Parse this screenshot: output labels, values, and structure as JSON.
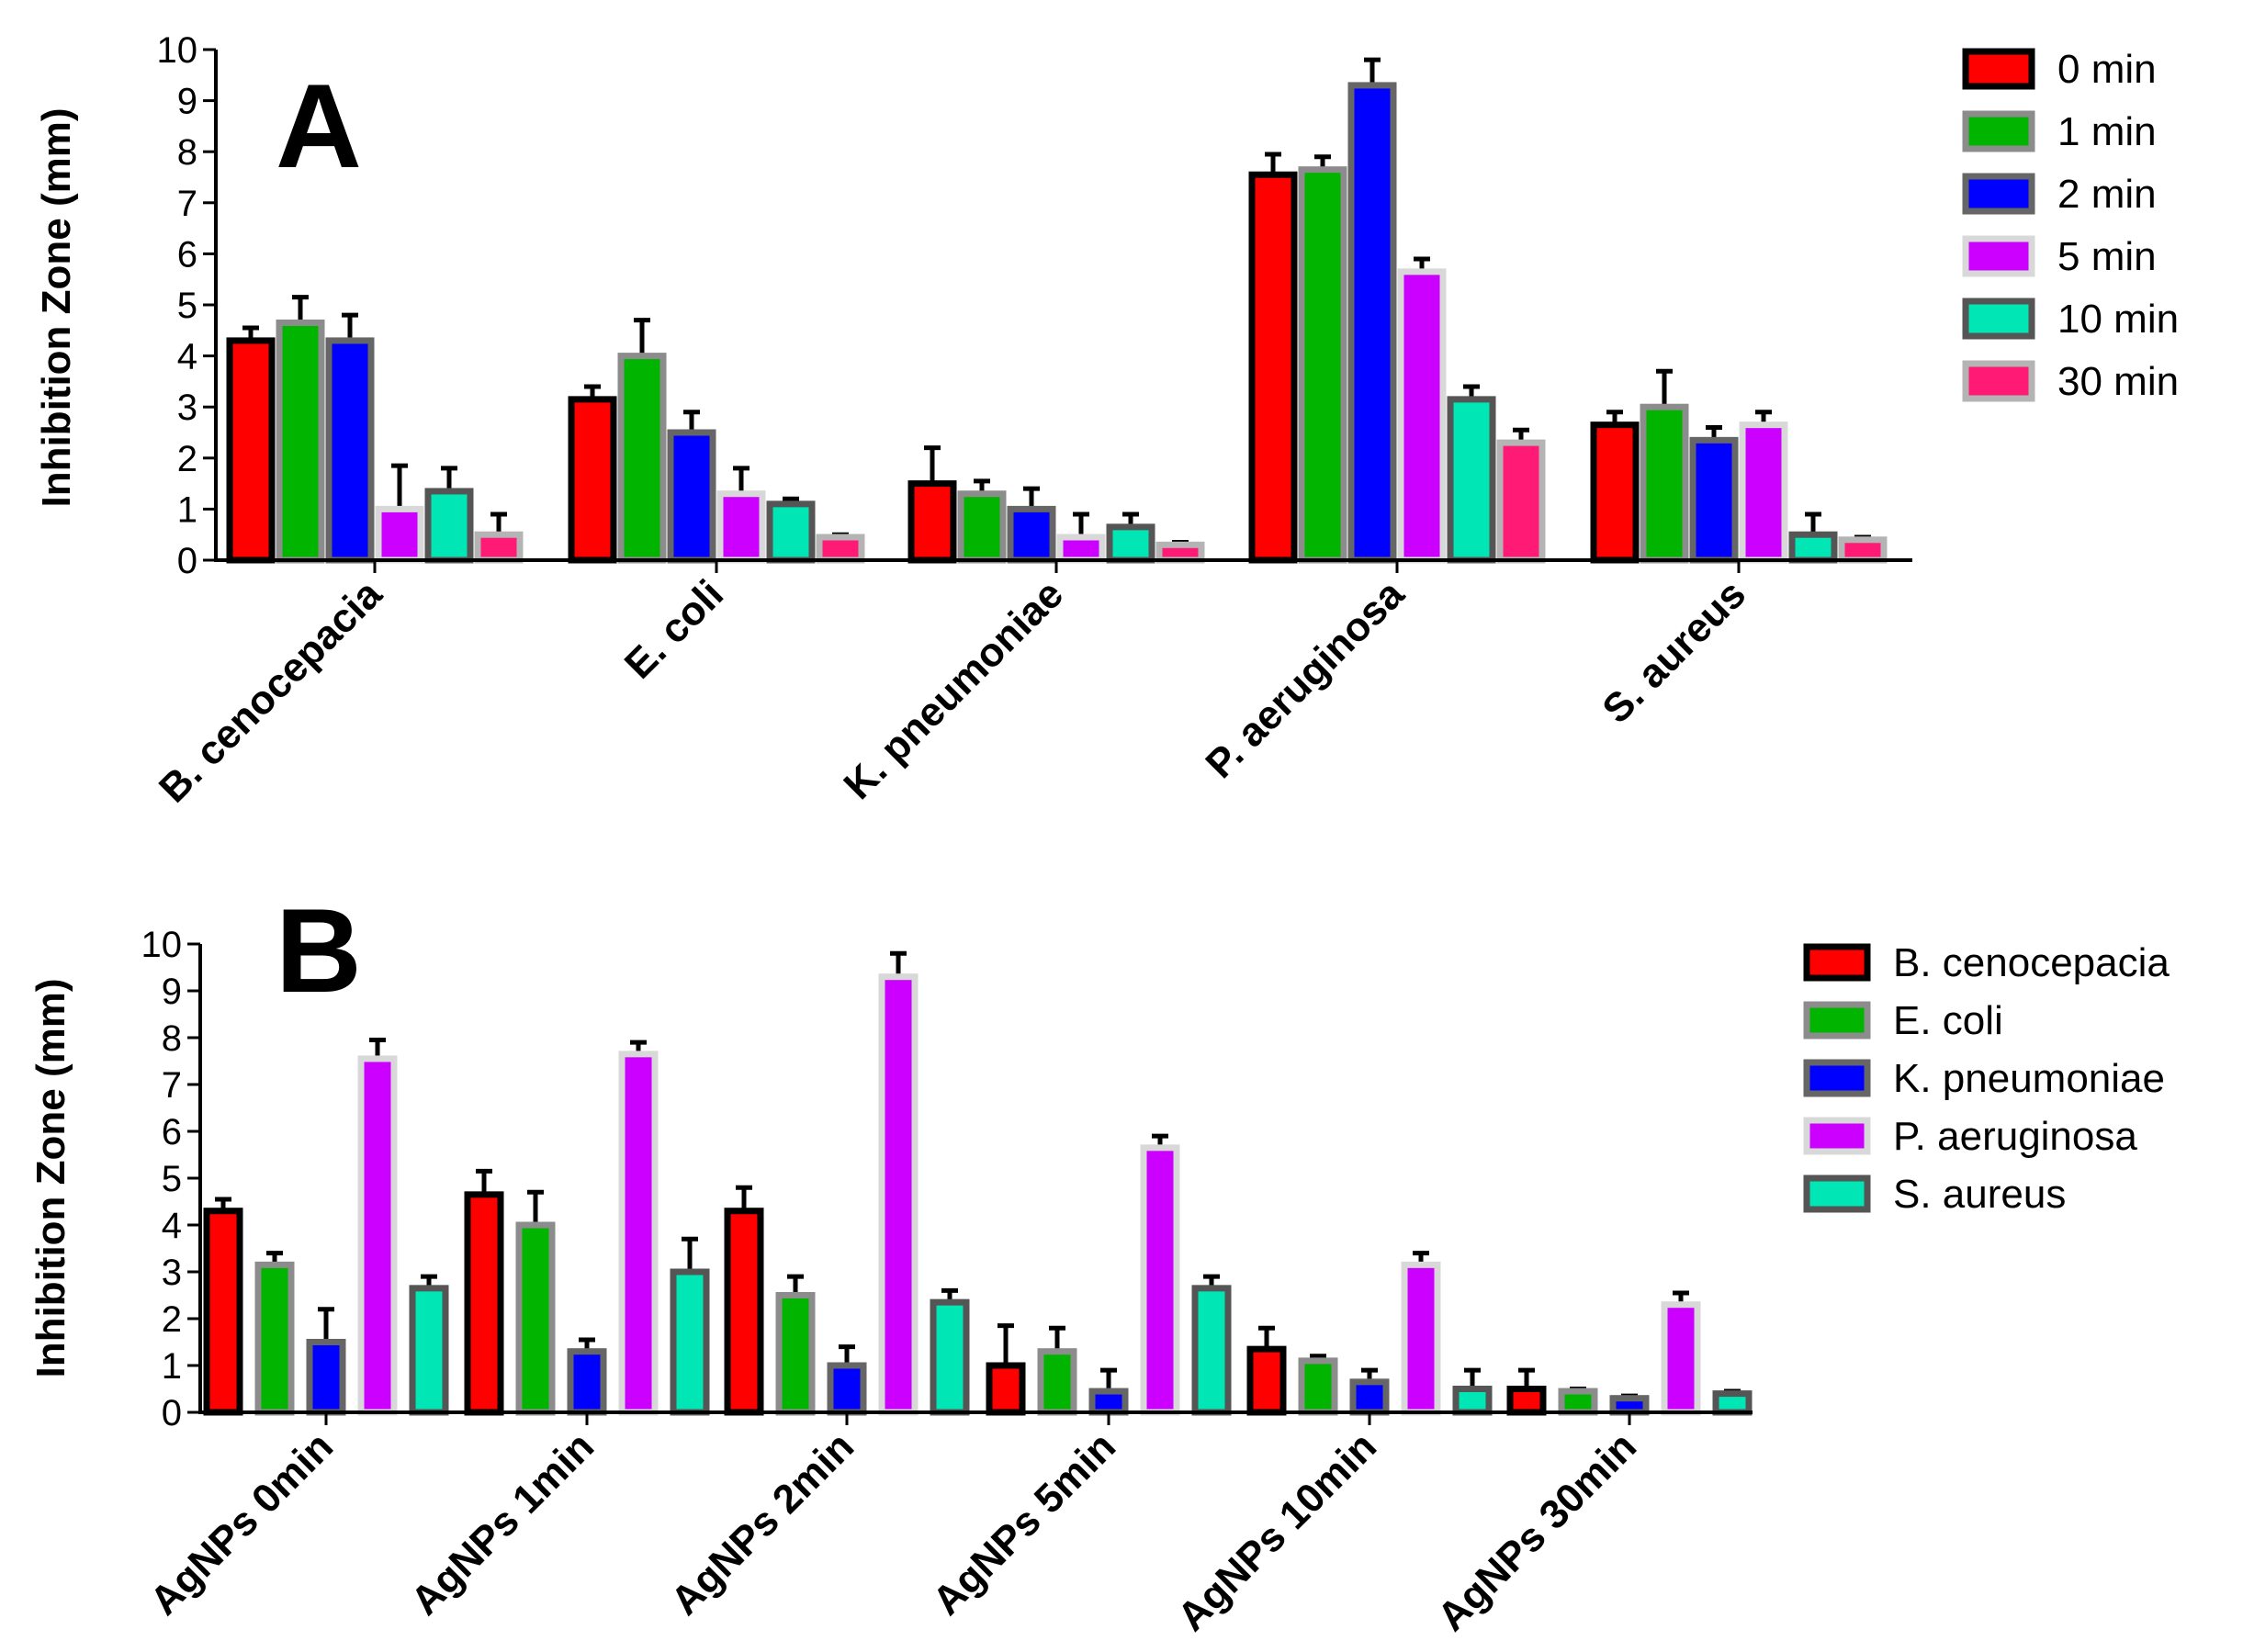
{
  "chart_data": [
    {
      "type": "bar",
      "panel_label": "A",
      "ylabel": "Inhibition Zone (mm)",
      "xlabel": "",
      "ylim": [
        0,
        10
      ],
      "yticks": [
        "0",
        "1",
        "2",
        "3",
        "4",
        "5",
        "6",
        "7",
        "8",
        "9",
        "10"
      ],
      "categories": [
        "B. cenocepacia",
        "E. coli",
        "K. pneumoniae",
        "P. aeruginosa",
        "S. aureus"
      ],
      "legend_position": "right",
      "series": [
        {
          "name": "0 min",
          "color": "#ff0000",
          "border": "#000000",
          "values": [
            4.3,
            3.15,
            1.5,
            7.55,
            2.65
          ],
          "errors": [
            0.25,
            0.25,
            0.7,
            0.4,
            0.25
          ]
        },
        {
          "name": "1 min",
          "color": "#00b400",
          "border": "#8c8c8c",
          "values": [
            4.65,
            4.0,
            1.3,
            7.65,
            3.0
          ],
          "errors": [
            0.5,
            0.7,
            0.25,
            0.25,
            0.7
          ]
        },
        {
          "name": "2 min",
          "color": "#0000ff",
          "border": "#666666",
          "values": [
            4.3,
            2.5,
            1.0,
            9.3,
            2.35
          ],
          "errors": [
            0.5,
            0.4,
            0.4,
            0.5,
            0.25
          ]
        },
        {
          "name": "5 min",
          "color": "#cc00ff",
          "border": "#d8d8d8",
          "values": [
            1.0,
            1.3,
            0.45,
            5.65,
            2.65
          ],
          "errors": [
            0.85,
            0.5,
            0.45,
            0.25,
            0.25
          ]
        },
        {
          "name": "10 min",
          "color": "#00e6b4",
          "border": "#555555",
          "values": [
            1.35,
            1.1,
            0.65,
            3.15,
            0.5
          ],
          "errors": [
            0.45,
            0.1,
            0.25,
            0.25,
            0.4
          ]
        },
        {
          "name": "30 min",
          "color": "#ff1a75",
          "border": "#b4b4b4",
          "values": [
            0.5,
            0.45,
            0.3,
            2.3,
            0.4
          ],
          "errors": [
            0.4,
            0.05,
            0.05,
            0.25,
            0.05
          ]
        }
      ]
    },
    {
      "type": "bar",
      "panel_label": "B",
      "ylabel": "Inhibition Zone (mm)",
      "xlabel": "",
      "ylim": [
        0,
        10
      ],
      "yticks": [
        "0",
        "1",
        "2",
        "3",
        "4",
        "5",
        "6",
        "7",
        "8",
        "9",
        "10"
      ],
      "categories": [
        "AgNPs 0min",
        "AgNPs 1min",
        "AgNPs 2min",
        "AgNPs 5min",
        "AgNPs 10min",
        "AgNPs 30min"
      ],
      "legend_position": "right",
      "series": [
        {
          "name": "B. cenocepacia",
          "color": "#ff0000",
          "border": "#000000",
          "values": [
            4.3,
            4.65,
            4.3,
            1.0,
            1.35,
            0.5
          ],
          "errors": [
            0.25,
            0.5,
            0.5,
            0.85,
            0.45,
            0.4
          ]
        },
        {
          "name": "E. coli",
          "color": "#00b400",
          "border": "#8c8c8c",
          "values": [
            3.15,
            4.0,
            2.5,
            1.3,
            1.1,
            0.45
          ],
          "errors": [
            0.25,
            0.7,
            0.4,
            0.5,
            0.1,
            0.05
          ]
        },
        {
          "name": "K. pneumoniae",
          "color": "#0000ff",
          "border": "#666666",
          "values": [
            1.5,
            1.3,
            1.0,
            0.45,
            0.65,
            0.3
          ],
          "errors": [
            0.7,
            0.25,
            0.4,
            0.45,
            0.25,
            0.05
          ]
        },
        {
          "name": "P. aeruginosa",
          "color": "#cc00ff",
          "border": "#d8d8d8",
          "values": [
            7.55,
            7.65,
            9.3,
            5.65,
            3.15,
            2.3
          ],
          "errors": [
            0.4,
            0.25,
            0.5,
            0.25,
            0.25,
            0.25
          ]
        },
        {
          "name": "S. aureus",
          "color": "#00e6b4",
          "border": "#555555",
          "values": [
            2.65,
            3.0,
            2.35,
            2.65,
            0.5,
            0.4
          ],
          "errors": [
            0.25,
            0.7,
            0.25,
            0.25,
            0.4,
            0.05
          ]
        }
      ]
    }
  ]
}
